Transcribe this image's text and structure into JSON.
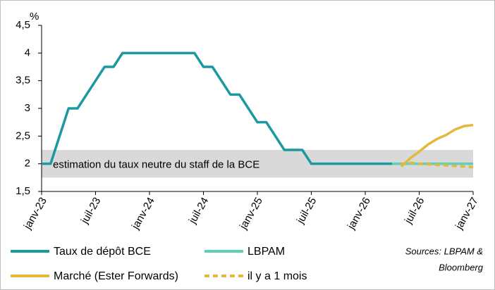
{
  "chart_data": {
    "type": "line",
    "y_unit": "%",
    "categories": [
      "janv-23",
      null,
      null,
      null,
      null,
      null,
      "juil-23",
      null,
      null,
      null,
      null,
      null,
      "janv-24",
      null,
      null,
      null,
      null,
      null,
      "juil-24",
      null,
      null,
      null,
      null,
      null,
      "janv-25",
      null,
      null,
      null,
      null,
      null,
      "juil-25",
      null,
      null,
      null,
      null,
      null,
      "janv-26",
      null,
      null,
      null,
      null,
      null,
      "juil-26",
      null,
      null,
      null,
      null,
      null,
      "janv-27"
    ],
    "series": [
      {
        "name": "Taux de dépôt BCE",
        "color": "#1a9aa0",
        "style": "solid",
        "values": [
          2,
          2,
          2.5,
          3,
          3,
          3.25,
          3.5,
          3.75,
          3.75,
          4,
          4,
          4,
          4,
          4,
          4,
          4,
          4,
          4,
          3.75,
          3.75,
          3.5,
          3.25,
          3.25,
          3,
          2.75,
          2.75,
          2.5,
          2.25,
          2.25,
          2.25,
          2,
          2,
          2,
          2,
          2,
          2,
          2,
          2,
          2,
          2,
          null,
          null,
          null,
          null,
          null,
          null,
          null,
          null,
          null
        ]
      },
      {
        "name": "LBPAM",
        "color": "#5fcfb8",
        "style": "solid",
        "values": [
          null,
          null,
          null,
          null,
          null,
          null,
          null,
          null,
          null,
          null,
          null,
          null,
          null,
          null,
          null,
          null,
          null,
          null,
          null,
          null,
          null,
          null,
          null,
          null,
          null,
          null,
          null,
          null,
          null,
          null,
          null,
          null,
          null,
          null,
          null,
          null,
          null,
          null,
          null,
          2,
          2,
          2,
          2,
          2,
          2,
          2,
          2,
          2,
          2
        ]
      },
      {
        "name": "Marché (Ester Forwards)",
        "color": "#e3b93c",
        "style": "solid",
        "values": [
          null,
          null,
          null,
          null,
          null,
          null,
          null,
          null,
          null,
          null,
          null,
          null,
          null,
          null,
          null,
          null,
          null,
          null,
          null,
          null,
          null,
          null,
          null,
          null,
          null,
          null,
          null,
          null,
          null,
          null,
          null,
          null,
          null,
          null,
          null,
          null,
          null,
          null,
          null,
          null,
          1.95,
          2.1,
          2.22,
          2.35,
          2.45,
          2.52,
          2.62,
          2.68,
          2.7
        ]
      },
      {
        "name": "il y a 1 mois",
        "color": "#e3b93c",
        "style": "dashed",
        "values": [
          null,
          null,
          null,
          null,
          null,
          null,
          null,
          null,
          null,
          null,
          null,
          null,
          null,
          null,
          null,
          null,
          null,
          null,
          null,
          null,
          null,
          null,
          null,
          null,
          null,
          null,
          null,
          null,
          null,
          null,
          null,
          null,
          null,
          null,
          null,
          null,
          null,
          null,
          null,
          null,
          2,
          2.02,
          2,
          1.99,
          1.98,
          1.97,
          1.96,
          1.95,
          1.94
        ]
      }
    ],
    "band": {
      "range": [
        1.75,
        2.25
      ],
      "label": "estimation du taux neutre du staff de la BCE",
      "color": "#d9d9d9"
    },
    "ylim": [
      1.5,
      4.5
    ],
    "yticks": [
      {
        "value": 1.5,
        "label": "1,5"
      },
      2,
      {
        "value": 2.5,
        "label": "2,5"
      },
      3,
      {
        "value": 3.5,
        "label": "3,5"
      },
      4,
      {
        "value": 4.5,
        "label": "4,5"
      }
    ],
    "sources": [
      "Sources: LBPAM &",
      "Bloomberg"
    ]
  }
}
